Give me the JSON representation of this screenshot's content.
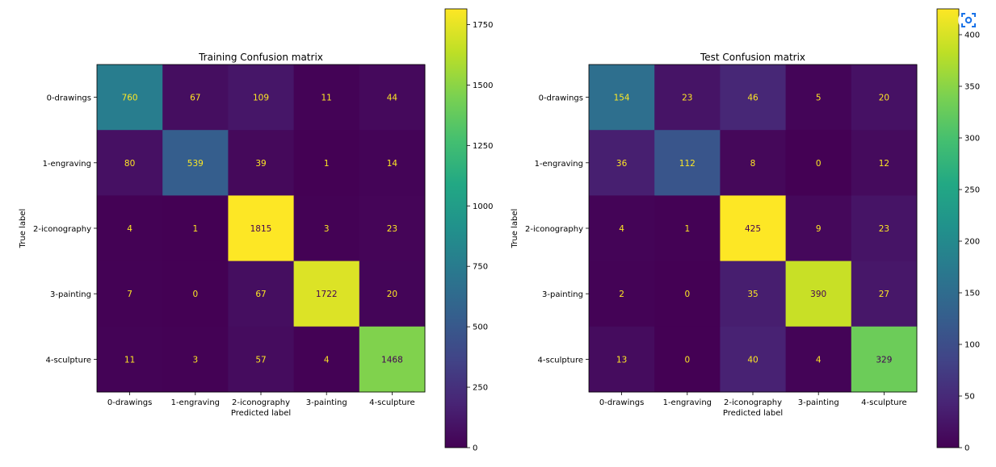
{
  "chart_data": [
    {
      "type": "heatmap",
      "title": "Training Confusion matrix",
      "xlabel": "Predicted label",
      "ylabel": "True label",
      "x_categories": [
        "0-drawings",
        "1-engraving",
        "2-iconography",
        "3-painting",
        "4-sculpture"
      ],
      "y_categories": [
        "0-drawings",
        "1-engraving",
        "2-iconography",
        "3-painting",
        "4-sculpture"
      ],
      "values": [
        [
          760,
          67,
          109,
          11,
          44
        ],
        [
          80,
          539,
          39,
          1,
          14
        ],
        [
          4,
          1,
          1815,
          3,
          23
        ],
        [
          7,
          0,
          67,
          1722,
          20
        ],
        [
          11,
          3,
          57,
          4,
          1468
        ]
      ],
      "colormap": "viridis",
      "colorbar": {
        "min": 0,
        "max": 1815,
        "ticks": [
          0,
          250,
          500,
          750,
          1000,
          1250,
          1500,
          1750
        ]
      }
    },
    {
      "type": "heatmap",
      "title": "Test Confusion matrix",
      "xlabel": "Predicted label",
      "ylabel": "True label",
      "x_categories": [
        "0-drawings",
        "1-engraving",
        "2-iconography",
        "3-painting",
        "4-sculpture"
      ],
      "y_categories": [
        "0-drawings",
        "1-engraving",
        "2-iconography",
        "3-painting",
        "4-sculpture"
      ],
      "values": [
        [
          154,
          23,
          46,
          5,
          20
        ],
        [
          36,
          112,
          8,
          0,
          12
        ],
        [
          4,
          1,
          425,
          9,
          23
        ],
        [
          2,
          0,
          35,
          390,
          27
        ],
        [
          13,
          0,
          40,
          4,
          329
        ]
      ],
      "colormap": "viridis",
      "colorbar": {
        "min": 0,
        "max": 425,
        "ticks": [
          0,
          50,
          100,
          150,
          200,
          250,
          300,
          350,
          400
        ]
      }
    }
  ],
  "colors": {
    "text_on_dark": "#fde725",
    "text_on_light": "#440154",
    "frame": "#000000"
  },
  "icons": {
    "corner_button": "lens-icon"
  }
}
